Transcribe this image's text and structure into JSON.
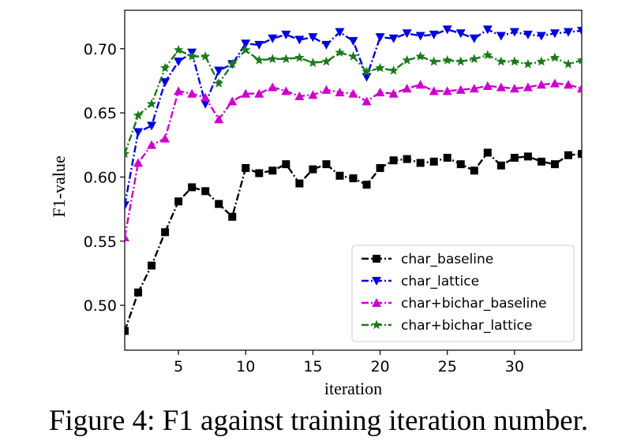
{
  "caption": "Figure 4: F1 against training iteration number.",
  "chart_data": {
    "type": "line",
    "xlabel": "iteration",
    "ylabel": "F1-value",
    "xlim": [
      1,
      35
    ],
    "ylim": [
      0.465,
      0.73
    ],
    "xticks": [
      5,
      10,
      15,
      20,
      25,
      30
    ],
    "yticks": [
      0.5,
      0.55,
      0.6,
      0.65,
      0.7
    ],
    "ytick_labels": [
      "0.50",
      "0.55",
      "0.60",
      "0.65",
      "0.70"
    ],
    "grid": false,
    "legend_position": "lower-right",
    "x": [
      1,
      2,
      3,
      4,
      5,
      6,
      7,
      8,
      9,
      10,
      11,
      12,
      13,
      14,
      15,
      16,
      17,
      18,
      19,
      20,
      21,
      22,
      23,
      24,
      25,
      26,
      27,
      28,
      29,
      30,
      31,
      32,
      33,
      34,
      35
    ],
    "series": [
      {
        "name": "char_baseline",
        "color": "#000000",
        "marker": "square",
        "values": [
          0.48,
          0.51,
          0.531,
          0.557,
          0.581,
          0.592,
          0.589,
          0.579,
          0.569,
          0.607,
          0.603,
          0.605,
          0.61,
          0.595,
          0.606,
          0.61,
          0.601,
          0.599,
          0.594,
          0.607,
          0.613,
          0.614,
          0.611,
          0.612,
          0.615,
          0.61,
          0.605,
          0.619,
          0.609,
          0.615,
          0.616,
          0.612,
          0.61,
          0.617,
          0.618
        ]
      },
      {
        "name": "char_lattice",
        "color": "#0000dd",
        "marker": "triangle-down",
        "values": [
          0.578,
          0.635,
          0.64,
          0.674,
          0.69,
          0.697,
          0.657,
          0.683,
          0.688,
          0.704,
          0.703,
          0.708,
          0.711,
          0.707,
          0.709,
          0.703,
          0.713,
          0.706,
          0.678,
          0.709,
          0.708,
          0.712,
          0.71,
          0.711,
          0.715,
          0.712,
          0.708,
          0.715,
          0.71,
          0.713,
          0.711,
          0.71,
          0.712,
          0.713,
          0.714
        ]
      },
      {
        "name": "char+bichar_baseline",
        "color": "#cc00cc",
        "marker": "triangle-up",
        "values": [
          0.553,
          0.611,
          0.625,
          0.63,
          0.667,
          0.665,
          0.662,
          0.645,
          0.659,
          0.665,
          0.665,
          0.67,
          0.667,
          0.663,
          0.664,
          0.668,
          0.666,
          0.665,
          0.659,
          0.666,
          0.665,
          0.669,
          0.672,
          0.667,
          0.667,
          0.668,
          0.669,
          0.671,
          0.67,
          0.669,
          0.67,
          0.672,
          0.673,
          0.672,
          0.669
        ]
      },
      {
        "name": "char+bichar_lattice",
        "color": "#1a7a1a",
        "marker": "star",
        "values": [
          0.618,
          0.648,
          0.657,
          0.685,
          0.699,
          0.694,
          0.694,
          0.673,
          0.688,
          0.699,
          0.691,
          0.692,
          0.692,
          0.693,
          0.689,
          0.69,
          0.697,
          0.694,
          0.682,
          0.685,
          0.683,
          0.691,
          0.694,
          0.69,
          0.691,
          0.69,
          0.692,
          0.695,
          0.69,
          0.69,
          0.688,
          0.69,
          0.693,
          0.688,
          0.691
        ]
      }
    ]
  }
}
